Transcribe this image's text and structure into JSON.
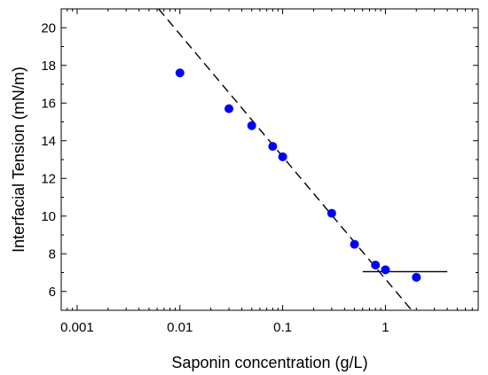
{
  "chart_data": {
    "type": "scatter",
    "title": "",
    "xlabel": "Saponin concentration (g/L)",
    "ylabel": "Interfacial Tension (mN/m)",
    "x_scale": "log",
    "xlim": [
      0.0007,
      8
    ],
    "ylim": [
      5,
      21
    ],
    "x_ticks": [
      {
        "value": 0.001,
        "label": "0.001"
      },
      {
        "value": 0.01,
        "label": "0.01"
      },
      {
        "value": 0.1,
        "label": "0.1"
      },
      {
        "value": 1,
        "label": "1"
      }
    ],
    "y_ticks": [
      {
        "value": 6,
        "label": "6"
      },
      {
        "value": 8,
        "label": "8"
      },
      {
        "value": 10,
        "label": "10"
      },
      {
        "value": 12,
        "label": "12"
      },
      {
        "value": 14,
        "label": "14"
      },
      {
        "value": 16,
        "label": "16"
      },
      {
        "value": 18,
        "label": "18"
      },
      {
        "value": 20,
        "label": "20"
      }
    ],
    "grid": false,
    "legend": "none",
    "series": [
      {
        "marker_color": "#0000ff",
        "points": [
          {
            "x": 0.01,
            "y": 17.6
          },
          {
            "x": 0.03,
            "y": 15.7
          },
          {
            "x": 0.05,
            "y": 14.8
          },
          {
            "x": 0.08,
            "y": 13.7
          },
          {
            "x": 0.1,
            "y": 13.15
          },
          {
            "x": 0.3,
            "y": 10.15
          },
          {
            "x": 0.5,
            "y": 8.5
          },
          {
            "x": 0.8,
            "y": 7.4
          },
          {
            "x": 1.0,
            "y": 7.15
          },
          {
            "x": 2.0,
            "y": 6.75
          }
        ]
      }
    ],
    "fit_lines": [
      {
        "style": "dashed",
        "color": "#000000",
        "x": [
          0.0062,
          1.8
        ],
        "y": [
          21,
          5
        ]
      },
      {
        "style": "solid",
        "color": "#000000",
        "x": [
          0.6,
          4.0
        ],
        "y": [
          7.05,
          7.05
        ]
      }
    ]
  }
}
